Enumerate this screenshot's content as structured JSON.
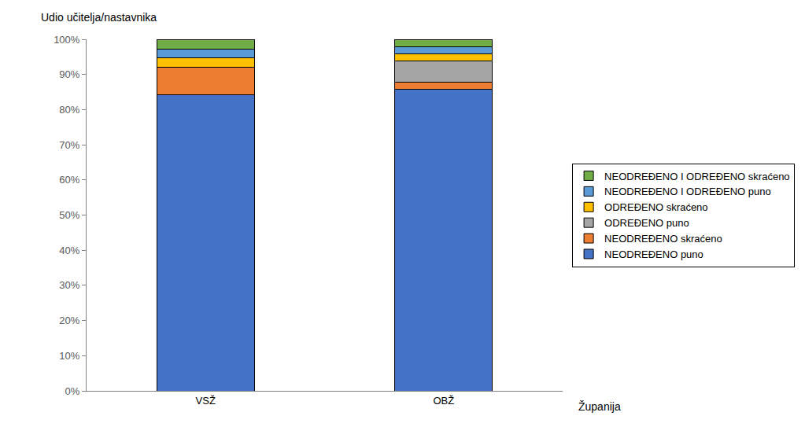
{
  "chart_data": {
    "type": "bar",
    "stacked": true,
    "y_label": "Udio učitelja/nastavnika",
    "x_label": "Županija",
    "categories": [
      "VSŽ",
      "OBŽ"
    ],
    "series": [
      {
        "name": "NEODREĐENO puno",
        "color": "#4472c4",
        "values": [
          84.2,
          85.8
        ]
      },
      {
        "name": "NEODREĐENO skraćeno",
        "color": "#ed7d31",
        "values": [
          7.9,
          1.9
        ]
      },
      {
        "name": "ODREĐENO puno",
        "color": "#a5a5a5",
        "values": [
          0,
          6.2
        ]
      },
      {
        "name": "ODREĐENO skraćeno",
        "color": "#ffc000",
        "values": [
          2.6,
          2.0
        ]
      },
      {
        "name": "NEODREĐENO I ODREĐENO puno",
        "color": "#5b9bd5",
        "values": [
          2.4,
          2.0
        ]
      },
      {
        "name": "NEODREĐENO I ODREĐENO skraćeno",
        "color": "#70ad47",
        "values": [
          2.9,
          2.1
        ]
      }
    ],
    "ylim": [
      0,
      100
    ],
    "yticks": [
      {
        "value": 0,
        "label": "0%"
      },
      {
        "value": 10,
        "label": "10%"
      },
      {
        "value": 20,
        "label": "20%"
      },
      {
        "value": 30,
        "label": "30%"
      },
      {
        "value": 40,
        "label": "40%"
      },
      {
        "value": 50,
        "label": "50%"
      },
      {
        "value": 60,
        "label": "60%"
      },
      {
        "value": 70,
        "label": "70%"
      },
      {
        "value": 80,
        "label": "80%"
      },
      {
        "value": 90,
        "label": "90%"
      },
      {
        "value": 100,
        "label": "100%"
      }
    ],
    "grid": false,
    "legend": "right"
  }
}
